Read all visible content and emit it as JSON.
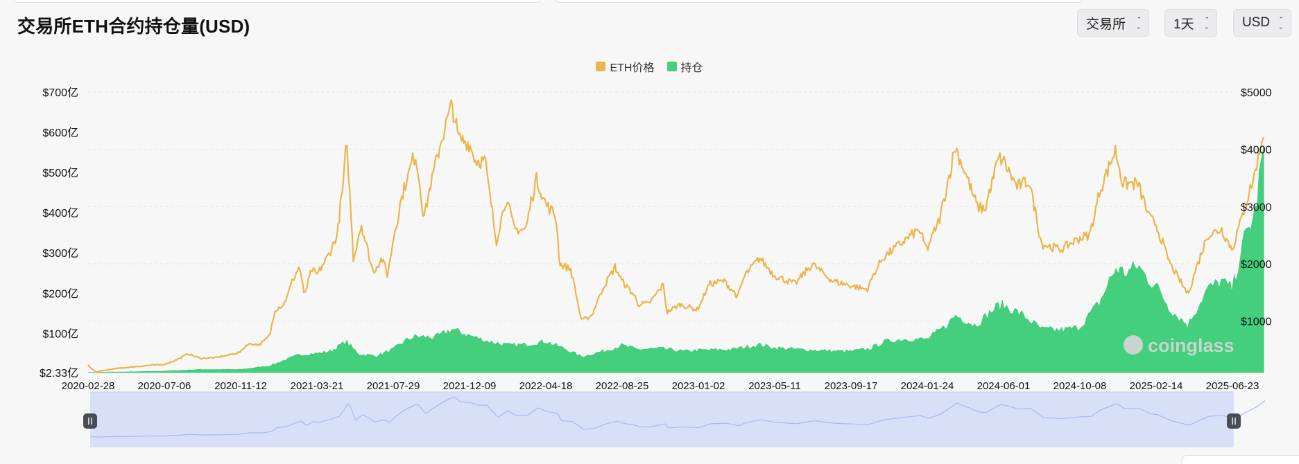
{
  "header": {
    "title": "交易所ETH合约持仓量(USD)",
    "selects": [
      {
        "label": "交易所"
      },
      {
        "label": "1天"
      },
      {
        "label": "USD"
      }
    ]
  },
  "watermark": "coinglass",
  "colors": {
    "price": "#e9b64c",
    "oi": "#43cf7c",
    "navigator_fill": "#d8e0f8",
    "navigator_line": "#a9b8ee"
  },
  "chart_data": {
    "type": "line",
    "legend": [
      {
        "name": "ETH价格",
        "color": "#e9b64c"
      },
      {
        "name": "持仓",
        "color": "#43cf7c"
      }
    ],
    "legend_position": "top-center",
    "grid": true,
    "x_tick_labels": [
      "2020-02-28",
      "2020-07-06",
      "2020-11-12",
      "2021-03-21",
      "2021-07-29",
      "2021-12-09",
      "2022-04-18",
      "2022-08-25",
      "2023-01-02",
      "2023-05-11",
      "2023-09-17",
      "2024-01-24",
      "2024-06-01",
      "2024-10-08",
      "2025-02-14",
      "2025-06-23"
    ],
    "y_left_tick_labels": [
      "$2.33亿",
      "$100亿",
      "$200亿",
      "$300亿",
      "$400亿",
      "$500亿",
      "$600亿",
      "$700亿"
    ],
    "y_left_ticks": [
      2.33,
      100,
      200,
      300,
      400,
      500,
      600,
      700
    ],
    "y_left_range": [
      2.33,
      700
    ],
    "y_right_tick_labels": [
      "$1000",
      "$2000",
      "$3000",
      "$4000",
      "$5000"
    ],
    "y_right_ticks": [
      1000,
      2000,
      3000,
      4000,
      5000
    ],
    "y_right_range": [
      100,
      5000
    ],
    "series": [
      {
        "name": "ETH价格",
        "axis": "right",
        "style": "line",
        "points": [
          [
            "2020-02-28",
            230
          ],
          [
            "2020-03-12",
            110
          ],
          [
            "2020-04-15",
            170
          ],
          [
            "2020-05-15",
            200
          ],
          [
            "2020-06-15",
            230
          ],
          [
            "2020-07-06",
            240
          ],
          [
            "2020-07-31",
            340
          ],
          [
            "2020-08-15",
            430
          ],
          [
            "2020-09-05",
            350
          ],
          [
            "2020-10-01",
            360
          ],
          [
            "2020-10-25",
            410
          ],
          [
            "2020-11-12",
            460
          ],
          [
            "2020-11-24",
            600
          ],
          [
            "2020-12-15",
            590
          ],
          [
            "2020-12-31",
            740
          ],
          [
            "2021-01-10",
            1200
          ],
          [
            "2021-01-25",
            1300
          ],
          [
            "2021-02-10",
            1750
          ],
          [
            "2021-02-20",
            1950
          ],
          [
            "2021-02-28",
            1450
          ],
          [
            "2021-03-13",
            1900
          ],
          [
            "2021-03-21",
            1800
          ],
          [
            "2021-04-10",
            2150
          ],
          [
            "2021-04-25",
            2500
          ],
          [
            "2021-05-04",
            3300
          ],
          [
            "2021-05-11",
            4100
          ],
          [
            "2021-05-23",
            2100
          ],
          [
            "2021-06-05",
            2700
          ],
          [
            "2021-06-25",
            1850
          ],
          [
            "2021-07-10",
            2100
          ],
          [
            "2021-07-20",
            1800
          ],
          [
            "2021-07-29",
            2400
          ],
          [
            "2021-08-14",
            3200
          ],
          [
            "2021-09-01",
            3800
          ],
          [
            "2021-09-07",
            3900
          ],
          [
            "2021-09-21",
            2800
          ],
          [
            "2021-10-01",
            3300
          ],
          [
            "2021-10-21",
            4150
          ],
          [
            "2021-11-09",
            4800
          ],
          [
            "2021-11-20",
            4200
          ],
          [
            "2021-12-09",
            4100
          ],
          [
            "2021-12-20",
            3800
          ],
          [
            "2022-01-05",
            3800
          ],
          [
            "2022-01-24",
            2400
          ],
          [
            "2022-02-10",
            3150
          ],
          [
            "2022-02-24",
            2600
          ],
          [
            "2022-03-15",
            2600
          ],
          [
            "2022-04-02",
            3500
          ],
          [
            "2022-04-18",
            3050
          ],
          [
            "2022-05-05",
            2850
          ],
          [
            "2022-05-12",
            2000
          ],
          [
            "2022-05-31",
            1900
          ],
          [
            "2022-06-18",
            1000
          ],
          [
            "2022-07-05",
            1100
          ],
          [
            "2022-07-25",
            1600
          ],
          [
            "2022-08-14",
            1950
          ],
          [
            "2022-08-25",
            1700
          ],
          [
            "2022-09-15",
            1450
          ],
          [
            "2022-09-21",
            1300
          ],
          [
            "2022-10-10",
            1300
          ],
          [
            "2022-11-05",
            1650
          ],
          [
            "2022-11-09",
            1150
          ],
          [
            "2022-12-02",
            1290
          ],
          [
            "2022-12-31",
            1200
          ],
          [
            "2023-01-02",
            1220
          ],
          [
            "2023-01-21",
            1650
          ],
          [
            "2023-02-15",
            1700
          ],
          [
            "2023-03-10",
            1430
          ],
          [
            "2023-03-22",
            1800
          ],
          [
            "2023-04-16",
            2100
          ],
          [
            "2023-05-11",
            1800
          ],
          [
            "2023-06-15",
            1650
          ],
          [
            "2023-07-14",
            2000
          ],
          [
            "2023-08-17",
            1700
          ],
          [
            "2023-09-17",
            1620
          ],
          [
            "2023-10-15",
            1550
          ],
          [
            "2023-10-25",
            1800
          ],
          [
            "2023-11-10",
            2100
          ],
          [
            "2023-12-10",
            2350
          ],
          [
            "2024-01-10",
            2600
          ],
          [
            "2024-01-24",
            2250
          ],
          [
            "2024-02-15",
            2800
          ],
          [
            "2024-03-12",
            4050
          ],
          [
            "2024-04-01",
            3500
          ],
          [
            "2024-04-18",
            3000
          ],
          [
            "2024-05-01",
            2950
          ],
          [
            "2024-05-24",
            3850
          ],
          [
            "2024-06-01",
            3800
          ],
          [
            "2024-06-24",
            3350
          ],
          [
            "2024-07-15",
            3450
          ],
          [
            "2024-08-05",
            2350
          ],
          [
            "2024-09-06",
            2250
          ],
          [
            "2024-10-08",
            2450
          ],
          [
            "2024-10-25",
            2500
          ],
          [
            "2024-11-12",
            3300
          ],
          [
            "2024-12-08",
            4000
          ],
          [
            "2024-12-20",
            3400
          ],
          [
            "2025-01-15",
            3400
          ],
          [
            "2025-02-03",
            2800
          ],
          [
            "2025-02-14",
            2700
          ],
          [
            "2025-03-10",
            2000
          ],
          [
            "2025-04-09",
            1470
          ],
          [
            "2025-05-12",
            2500
          ],
          [
            "2025-06-05",
            2600
          ],
          [
            "2025-06-23",
            2250
          ],
          [
            "2025-07-15",
            3000
          ],
          [
            "2025-08-01",
            3600
          ],
          [
            "2025-08-15",
            4300
          ]
        ]
      },
      {
        "name": "持仓",
        "axis": "left",
        "style": "area",
        "points": [
          [
            "2020-02-28",
            3
          ],
          [
            "2020-05-01",
            4
          ],
          [
            "2020-07-06",
            6
          ],
          [
            "2020-09-01",
            10
          ],
          [
            "2020-11-12",
            10
          ],
          [
            "2020-12-31",
            19
          ],
          [
            "2021-02-20",
            47
          ],
          [
            "2021-03-21",
            50
          ],
          [
            "2021-04-15",
            56
          ],
          [
            "2021-05-10",
            80
          ],
          [
            "2021-06-01",
            48
          ],
          [
            "2021-07-01",
            44
          ],
          [
            "2021-07-29",
            60
          ],
          [
            "2021-08-20",
            82
          ],
          [
            "2021-09-05",
            92
          ],
          [
            "2021-10-10",
            90
          ],
          [
            "2021-11-09",
            110
          ],
          [
            "2021-12-09",
            95
          ],
          [
            "2022-01-10",
            80
          ],
          [
            "2022-02-15",
            70
          ],
          [
            "2022-03-15",
            72
          ],
          [
            "2022-04-18",
            80
          ],
          [
            "2022-05-20",
            62
          ],
          [
            "2022-06-18",
            42
          ],
          [
            "2022-07-31",
            58
          ],
          [
            "2022-08-25",
            70
          ],
          [
            "2022-09-20",
            60
          ],
          [
            "2022-11-01",
            62
          ],
          [
            "2022-12-10",
            55
          ],
          [
            "2023-01-02",
            58
          ],
          [
            "2023-03-01",
            60
          ],
          [
            "2023-04-16",
            72
          ],
          [
            "2023-05-11",
            64
          ],
          [
            "2023-06-20",
            60
          ],
          [
            "2023-08-17",
            56
          ],
          [
            "2023-09-17",
            55
          ],
          [
            "2023-10-20",
            62
          ],
          [
            "2023-11-15",
            80
          ],
          [
            "2023-12-20",
            86
          ],
          [
            "2024-01-24",
            85
          ],
          [
            "2024-02-25",
            118
          ],
          [
            "2024-03-12",
            145
          ],
          [
            "2024-04-15",
            120
          ],
          [
            "2024-05-24",
            170
          ],
          [
            "2024-06-01",
            170
          ],
          [
            "2024-07-01",
            148
          ],
          [
            "2024-08-05",
            110
          ],
          [
            "2024-09-06",
            108
          ],
          [
            "2024-10-08",
            115
          ],
          [
            "2024-11-12",
            180
          ],
          [
            "2024-12-08",
            262
          ],
          [
            "2024-12-25",
            250
          ],
          [
            "2025-01-15",
            268
          ],
          [
            "2025-02-03",
            230
          ],
          [
            "2025-02-14",
            220
          ],
          [
            "2025-03-10",
            160
          ],
          [
            "2025-04-09",
            120
          ],
          [
            "2025-05-12",
            210
          ],
          [
            "2025-06-05",
            230
          ],
          [
            "2025-06-23",
            210
          ],
          [
            "2025-07-15",
            340
          ],
          [
            "2025-08-01",
            400
          ],
          [
            "2025-08-15",
            560
          ]
        ]
      }
    ]
  }
}
